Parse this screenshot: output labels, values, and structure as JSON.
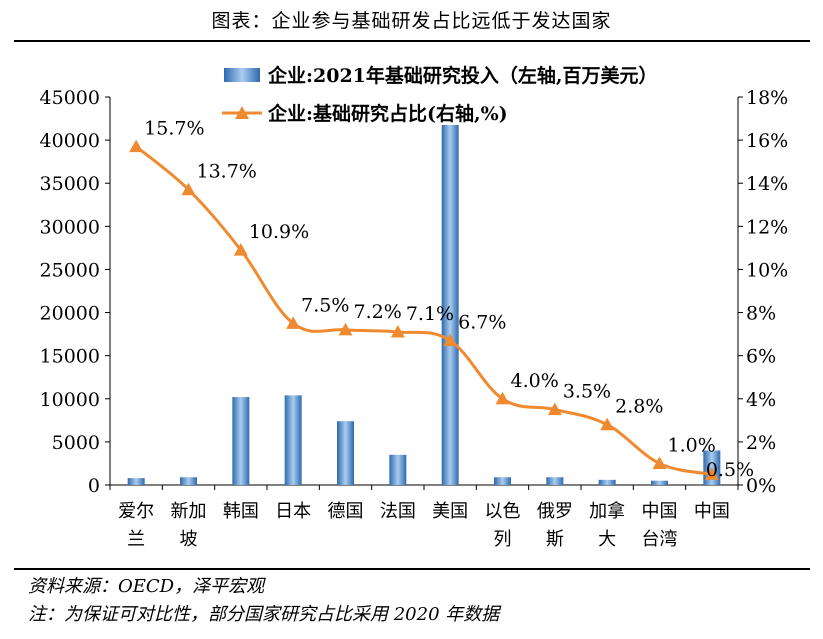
{
  "header": {
    "title": "图表：企业参与基础研发占比远低于发达国家"
  },
  "footer": {
    "source": "资料来源：OECD，泽平宏观",
    "note": "注：为保证可对比性，部分国家研究占比采用 2020 年数据"
  },
  "colors": {
    "bar": "#3a78be",
    "bar_light": "#9cc3ea",
    "line": "#f08a30"
  },
  "chart_data": {
    "type": "bar+line",
    "categories": [
      [
        "爱尔",
        "兰"
      ],
      [
        "新加",
        "坡"
      ],
      [
        "韩国"
      ],
      [
        "日本"
      ],
      [
        "德国"
      ],
      [
        "法国"
      ],
      [
        "美国"
      ],
      [
        "以色",
        "列"
      ],
      [
        "俄罗",
        "斯"
      ],
      [
        "加拿",
        "大"
      ],
      [
        "中国",
        "台湾"
      ],
      [
        "中国"
      ]
    ],
    "series": [
      {
        "name": "企业:2021年基础研究投入（左轴,百万美元）",
        "type": "bar",
        "axis": "left",
        "values": [
          800,
          900,
          10200,
          10400,
          7400,
          3500,
          42000,
          900,
          900,
          600,
          500,
          4000
        ]
      },
      {
        "name": "企业:基础研究占比(右轴,%)",
        "type": "line",
        "axis": "right",
        "values": [
          15.7,
          13.7,
          10.9,
          7.5,
          7.2,
          7.1,
          6.7,
          4.0,
          3.5,
          2.8,
          1.0,
          0.5
        ],
        "labels": [
          "15.7%",
          "13.7%",
          "10.9%",
          "7.5%",
          "7.2%",
          "7.1%",
          "6.7%",
          "4.0%",
          "3.5%",
          "2.8%",
          "1.0%",
          "0.5%"
        ]
      }
    ],
    "ylim_left": [
      0,
      45000
    ],
    "yticks_left": [
      "0",
      "5000",
      "10000",
      "15000",
      "20000",
      "25000",
      "30000",
      "35000",
      "40000",
      "45000"
    ],
    "ylim_right": [
      0,
      18
    ],
    "yticks_right": [
      "0%",
      "2%",
      "4%",
      "6%",
      "8%",
      "10%",
      "12%",
      "14%",
      "16%",
      "18%"
    ],
    "grid": false,
    "legend": "top-center"
  }
}
